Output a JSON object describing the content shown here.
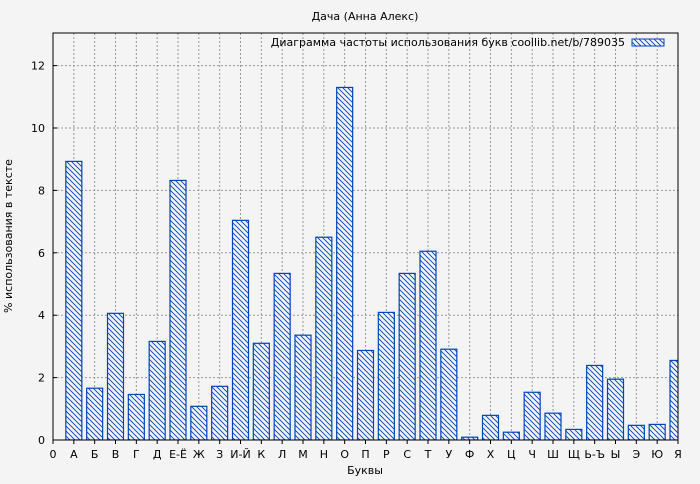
{
  "chart_data": {
    "type": "bar",
    "title": "Дача (Анна Алекс)",
    "xlabel": "Буквы",
    "ylabel": "% использования в тексте",
    "legend": {
      "label": "Диаграмма частоты использования букв coollib.net/b/789035",
      "placement": "top-right"
    },
    "x_origin_label": "0",
    "categories": [
      "А",
      "Б",
      "В",
      "Г",
      "Д",
      "Е-Ё",
      "Ж",
      "З",
      "И-Й",
      "К",
      "Л",
      "М",
      "Н",
      "О",
      "П",
      "Р",
      "С",
      "Т",
      "У",
      "Ф",
      "Х",
      "Ц",
      "Ч",
      "Ш",
      "Щ",
      "Ь-Ъ",
      "Ы",
      "Э",
      "Ю",
      "Я"
    ],
    "values": [
      8.93,
      1.66,
      4.06,
      1.46,
      3.16,
      8.32,
      1.08,
      1.72,
      7.04,
      3.1,
      5.34,
      3.36,
      6.5,
      11.3,
      2.87,
      4.09,
      5.34,
      6.05,
      2.91,
      0.09,
      0.79,
      0.25,
      1.53,
      0.86,
      0.34,
      2.39,
      1.95,
      0.47,
      0.5,
      2.55
    ],
    "ylim": [
      0,
      13
    ],
    "yticks": [
      0,
      2,
      4,
      6,
      8,
      10,
      12
    ],
    "grid": true,
    "bar_color": "#0044bb",
    "hatch": "diagonal"
  }
}
